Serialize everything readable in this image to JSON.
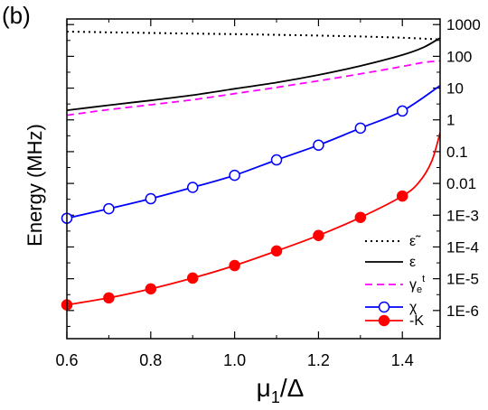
{
  "chart_data": {
    "type": "line",
    "panel_label": "(b)",
    "xlabel": "μ",
    "xlabel_sub": "1",
    "xlabel_tail": "/Δ",
    "ylabel": "Energy (MHz)",
    "xlim": [
      0.6,
      1.49
    ],
    "x_ticks": [
      0.6,
      0.8,
      1.0,
      1.2,
      1.4
    ],
    "x_tick_labels": [
      "0.6",
      "0.8",
      "1.0",
      "1.2",
      "1.4"
    ],
    "y_scale": "log",
    "ylim": [
      1.3e-07,
      1500
    ],
    "y_ticks": [
      1e-06,
      1e-05,
      0.0001,
      0.001,
      0.01,
      0.1,
      1,
      10,
      100,
      1000
    ],
    "y_tick_labels": [
      "1E-6",
      "1E-5",
      "1E-4",
      "1E-3",
      "0.01",
      "0.1",
      "1",
      "10",
      "100",
      "1000"
    ],
    "legend_position": "bottom-right",
    "series": [
      {
        "name": "ε̃",
        "color": "#000000",
        "style": "dotted",
        "marker": "none",
        "x": [
          0.6,
          0.7,
          0.8,
          0.9,
          1.0,
          1.1,
          1.2,
          1.3,
          1.4,
          1.49
        ],
        "y": [
          600,
          570,
          545,
          520,
          500,
          475,
          450,
          420,
          385,
          340
        ]
      },
      {
        "name": "ε",
        "color": "#000000",
        "style": "solid",
        "marker": "none",
        "x": [
          0.6,
          0.7,
          0.8,
          0.9,
          1.0,
          1.1,
          1.2,
          1.3,
          1.4,
          1.45,
          1.49
        ],
        "y": [
          2.0,
          2.9,
          4.1,
          6.0,
          9.5,
          15,
          26,
          50,
          110,
          190,
          380
        ]
      },
      {
        "name": "γe^t",
        "label_main": "γ",
        "label_sub": "e",
        "label_sup": "t",
        "color": "#ff00ff",
        "style": "dashed",
        "marker": "none",
        "x": [
          0.6,
          0.7,
          0.8,
          0.9,
          1.0,
          1.1,
          1.2,
          1.3,
          1.4,
          1.45,
          1.49
        ],
        "y": [
          1.4,
          2.1,
          3.0,
          4.3,
          6.7,
          10.5,
          17,
          28,
          48,
          64,
          72
        ]
      },
      {
        "name": "χ",
        "color": "#0000ff",
        "style": "solid",
        "marker": "open-circle",
        "x": [
          0.6,
          0.7,
          0.8,
          0.9,
          1.0,
          1.1,
          1.2,
          1.3,
          1.4,
          1.49
        ],
        "y": [
          0.0008,
          0.0016,
          0.0033,
          0.0075,
          0.018,
          0.055,
          0.16,
          0.55,
          1.9,
          12
        ]
      },
      {
        "name": "-K",
        "color": "#ff0000",
        "style": "solid",
        "marker": "filled-circle",
        "x": [
          0.6,
          0.7,
          0.8,
          0.9,
          1.0,
          1.1,
          1.2,
          1.3,
          1.4,
          1.44,
          1.47,
          1.49
        ],
        "y": [
          1.5e-06,
          2.5e-06,
          4.8e-06,
          1.05e-05,
          2.6e-05,
          7.5e-05,
          0.00023,
          0.00085,
          0.004,
          0.011,
          0.05,
          0.4
        ]
      }
    ]
  }
}
